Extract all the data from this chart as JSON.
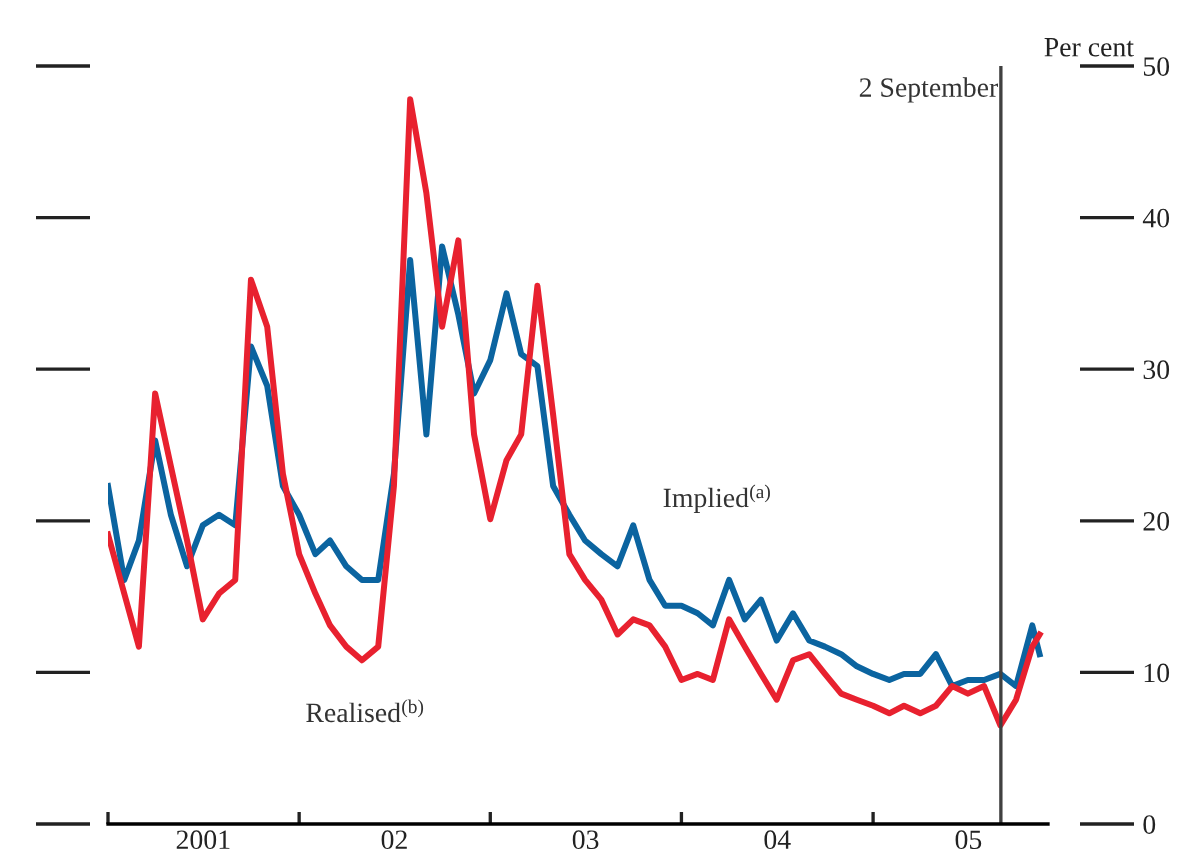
{
  "chart_data": {
    "type": "line",
    "ylabel": "Per cent",
    "x": [
      "2001-01-01",
      "2001-02-01",
      "2001-03-01",
      "2001-04-01",
      "2001-05-01",
      "2001-06-01",
      "2001-07-01",
      "2001-08-01",
      "2001-09-01",
      "2001-10-01",
      "2001-11-01",
      "2001-12-01",
      "2002-01-01",
      "2002-02-01",
      "2002-03-01",
      "2002-04-01",
      "2002-05-01",
      "2002-06-01",
      "2002-07-01",
      "2002-08-01",
      "2002-09-01",
      "2002-10-01",
      "2002-11-01",
      "2002-12-01",
      "2003-01-01",
      "2003-02-01",
      "2003-03-01",
      "2003-04-01",
      "2003-05-01",
      "2003-06-01",
      "2003-07-01",
      "2003-08-01",
      "2003-09-01",
      "2003-10-01",
      "2003-11-01",
      "2003-12-01",
      "2004-01-01",
      "2004-02-01",
      "2004-03-01",
      "2004-04-01",
      "2004-05-01",
      "2004-06-01",
      "2004-07-01",
      "2004-08-01",
      "2004-09-01",
      "2004-10-01",
      "2004-11-01",
      "2004-12-01",
      "2005-01-01",
      "2005-02-01",
      "2005-03-01",
      "2005-04-01",
      "2005-05-01",
      "2005-06-01",
      "2005-07-01",
      "2005-08-01",
      "2005-09-01",
      "2005-10-01",
      "2005-11-01",
      "2005-11-15"
    ],
    "series": [
      {
        "name": "Implied$^{(a)}$",
        "color": "#0b64a0",
        "values": [
          22.3,
          16.1,
          18.7,
          25.3,
          20.4,
          17,
          19.7,
          20.4,
          19.7,
          31.5,
          28.9,
          22.3,
          20.4,
          17.8,
          18.7,
          17,
          16.1,
          16.1,
          23.1,
          37.2,
          25.7,
          38.1,
          33.6,
          28.4,
          30.6,
          35,
          31,
          30.2,
          22.3,
          20.4,
          18.7,
          17.8,
          17,
          19.7,
          16.1,
          14.4,
          14.4,
          13.9,
          13.1,
          16.1,
          13.5,
          14.8,
          12.1,
          13.9,
          12.1,
          11.7,
          11.2,
          10.4,
          9.9,
          9.5,
          9.9,
          9.9,
          11.2,
          9.1,
          9.5,
          9.5,
          9.9,
          9.1,
          13.1,
          11.2
        ]
      },
      {
        "name": "Realised$^{(b)}$",
        "color": "#e8212f",
        "values": [
          19.1,
          15.2,
          11.7,
          28.4,
          23.6,
          18.7,
          13.5,
          15.2,
          16.1,
          35.9,
          32.8,
          23.1,
          17.8,
          15.2,
          13.1,
          11.7,
          10.8,
          11.7,
          22.3,
          47.8,
          41.6,
          32.8,
          38.5,
          25.7,
          20.1,
          24,
          25.7,
          35.5,
          27,
          17.8,
          16.1,
          14.8,
          12.5,
          13.5,
          13.1,
          11.7,
          9.5,
          9.9,
          9.5,
          13.5,
          11.7,
          9.9,
          8.2,
          10.8,
          11.2,
          9.9,
          8.6,
          8.2,
          7.8,
          7.3,
          7.8,
          7.3,
          7.8,
          9.1,
          8.6,
          9.1,
          6.5,
          8.2,
          11.7,
          12.5
        ]
      }
    ],
    "xlim": [
      "2001-01-01",
      "2005-12-01"
    ],
    "xticks": [
      {
        "value": "2001-01-01",
        "label": null
      },
      {
        "value": "2001-07-02",
        "label": "2001"
      },
      {
        "value": "2002-01-01",
        "label": null
      },
      {
        "value": "2002-07-02",
        "label": "02"
      },
      {
        "value": "2003-01-01",
        "label": null
      },
      {
        "value": "2003-07-02",
        "label": "03"
      },
      {
        "value": "2004-01-01",
        "label": null
      },
      {
        "value": "2004-07-02",
        "label": "04"
      },
      {
        "value": "2005-01-01",
        "label": null
      },
      {
        "value": "2005-07-02",
        "label": "05"
      }
    ],
    "ylim": [
      0,
      50
    ],
    "yticks": [
      0,
      10,
      20,
      30,
      40,
      50
    ],
    "ref_lines": [
      {
        "axis": "x",
        "value": "2005-09-02",
        "label": "2 September",
        "color": "#404040"
      }
    ],
    "grid": false,
    "legend": false,
    "marker": "none",
    "line_style": "solid"
  }
}
